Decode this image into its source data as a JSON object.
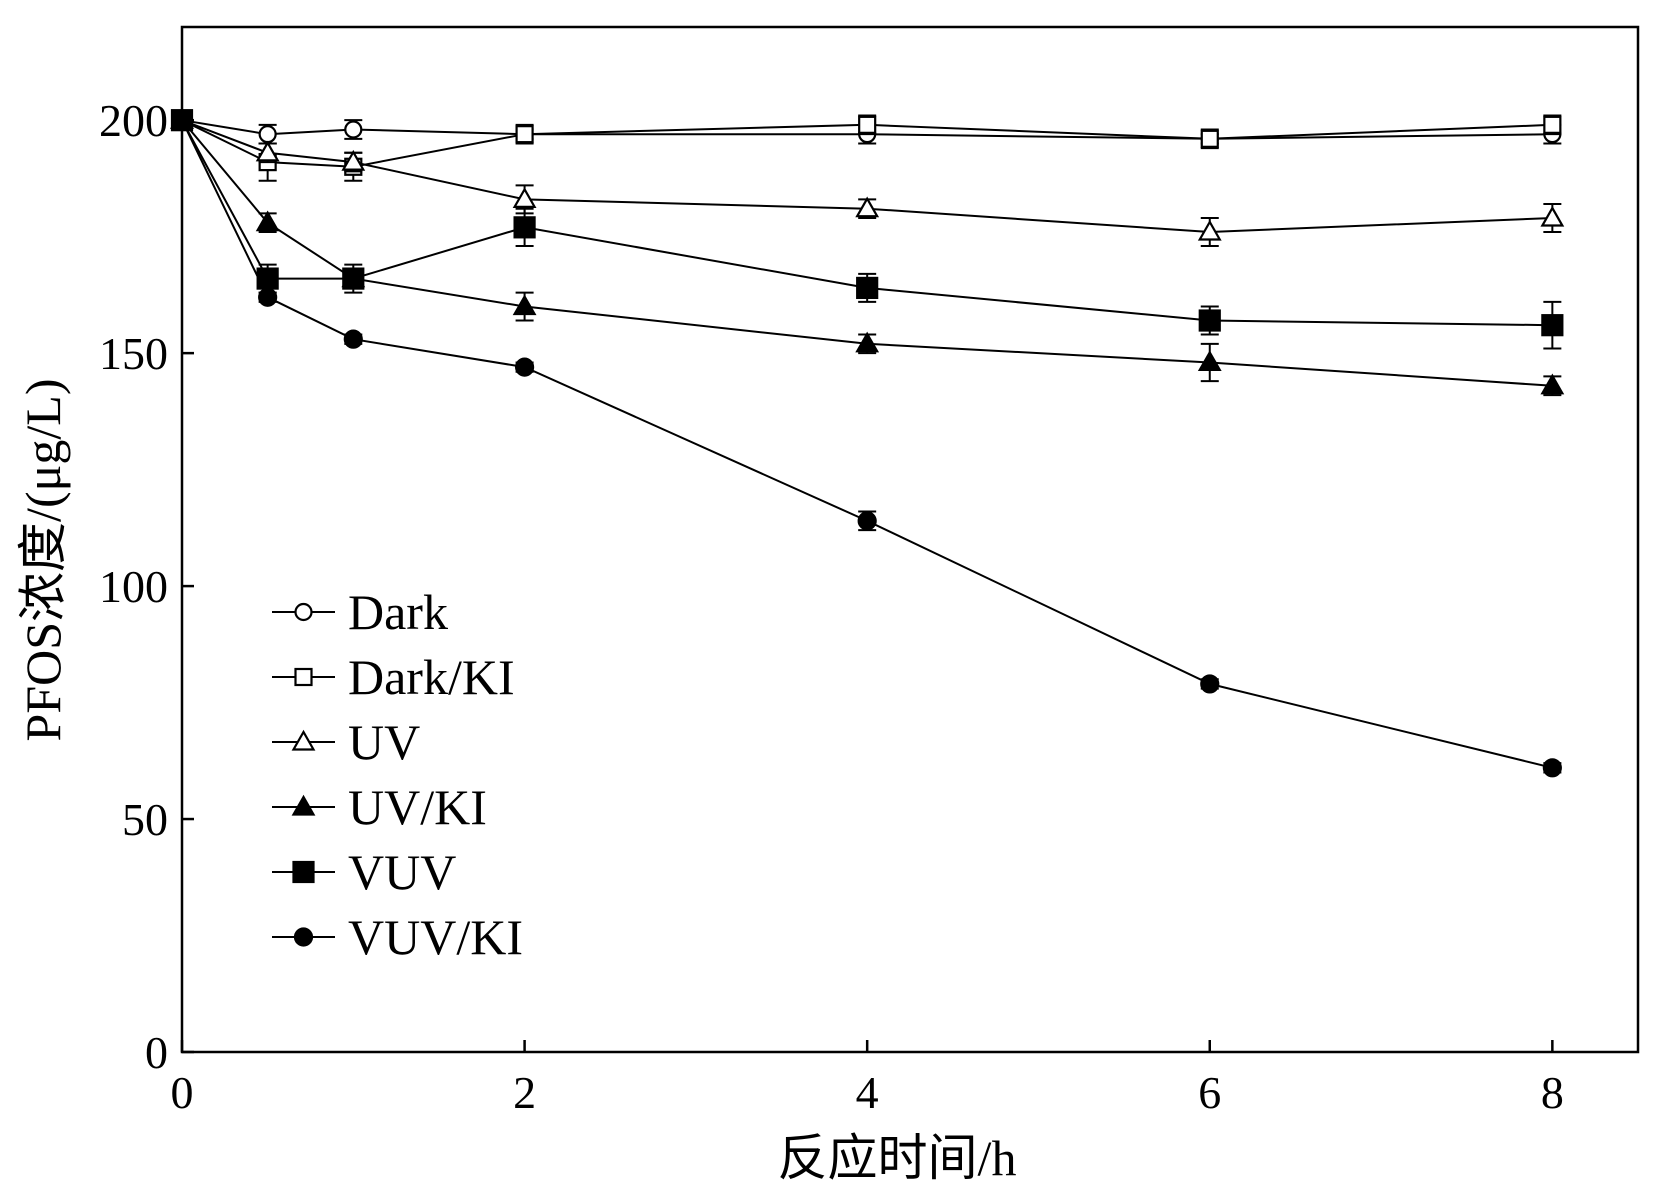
{
  "chart_data": {
    "type": "line",
    "xlabel": "反应时间/h",
    "ylabel": "PFOS浓度/(μg/L)",
    "xlim": [
      0,
      8.5
    ],
    "ylim": [
      0,
      220
    ],
    "xticks": [
      0,
      2,
      4,
      6,
      8
    ],
    "yticks": [
      0,
      50,
      100,
      150,
      200
    ],
    "grid": false,
    "legend_position": "bottom-left",
    "x": [
      0,
      0.5,
      1,
      2,
      4,
      6,
      8
    ],
    "series": [
      {
        "name": "Dark",
        "marker": "circle-open",
        "values": [
          200,
          197,
          198,
          197,
          197,
          196,
          197
        ],
        "errors": [
          2,
          2,
          2,
          1,
          2,
          1,
          2
        ]
      },
      {
        "name": "Dark/KI",
        "marker": "square-open",
        "values": [
          200,
          191,
          190,
          197,
          199,
          196,
          199
        ],
        "errors": [
          2,
          4,
          3,
          2,
          2,
          2,
          2
        ]
      },
      {
        "name": "UV",
        "marker": "triangle-open",
        "values": [
          200,
          193,
          191,
          183,
          181,
          176,
          179
        ],
        "errors": [
          2,
          2,
          2,
          3,
          2,
          3,
          3
        ]
      },
      {
        "name": "UV/KI",
        "marker": "triangle-filled",
        "values": [
          200,
          178,
          166,
          160,
          152,
          148,
          143
        ],
        "errors": [
          2,
          2,
          2,
          3,
          2,
          4,
          2
        ]
      },
      {
        "name": "VUV",
        "marker": "square-filled",
        "values": [
          200,
          166,
          166,
          177,
          164,
          157,
          156
        ],
        "errors": [
          2,
          3,
          3,
          4,
          3,
          3,
          5
        ]
      },
      {
        "name": "VUV/KI",
        "marker": "circle-filled",
        "values": [
          200,
          162,
          153,
          147,
          114,
          79,
          61
        ],
        "errors": [
          1,
          1,
          1,
          1,
          2,
          1,
          1
        ]
      }
    ]
  }
}
